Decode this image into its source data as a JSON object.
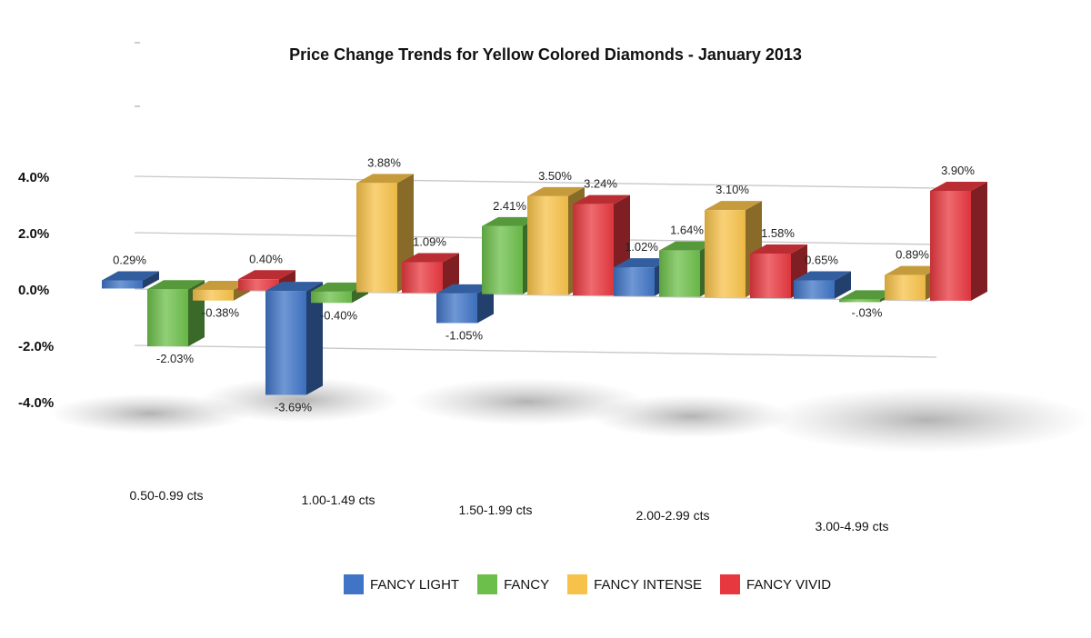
{
  "chart_data": {
    "type": "bar",
    "title": "Price Change Trends for Yellow Colored Diamonds - January 2013",
    "xlabel": "",
    "ylabel": "",
    "ylim": [
      -4.0,
      4.0
    ],
    "y_ticks": [
      "4.0%",
      "2.0%",
      "0.0%",
      "-2.0%",
      "-4.0%"
    ],
    "grid": true,
    "legend_position": "bottom",
    "categories": [
      "0.50-0.99 cts",
      "1.00-1.49 cts",
      "1.50-1.99 cts",
      "2.00-2.99 cts",
      "3.00-4.99 cts"
    ],
    "series": [
      {
        "name": "FANCY LIGHT",
        "color": "#3f74c6",
        "values": [
          0.29,
          -3.69,
          -1.05,
          1.02,
          0.65
        ],
        "labels": [
          "0.29%",
          "-3.69%",
          "-1.05%",
          "1.02%",
          "0.65%"
        ]
      },
      {
        "name": "FANCY",
        "color": "#6cbf4a",
        "values": [
          -2.03,
          -0.4,
          2.41,
          1.64,
          -0.03
        ],
        "labels": [
          "-2.03%",
          "-0.40%",
          "2.41%",
          "1.64%",
          "-.03%"
        ]
      },
      {
        "name": "FANCY INTENSE",
        "color": "#f7c24a",
        "values": [
          -0.38,
          3.88,
          3.5,
          3.1,
          0.89
        ],
        "labels": [
          "-0.38%",
          "3.88%",
          "3.50%",
          "3.10%",
          "0.89%"
        ]
      },
      {
        "name": "FANCY VIVID",
        "color": "#e8383f",
        "values": [
          0.4,
          1.09,
          3.24,
          1.58,
          3.9
        ],
        "labels": [
          "0.40%",
          "1.09%",
          "3.24%",
          "1.58%",
          "3.90%"
        ]
      }
    ]
  }
}
